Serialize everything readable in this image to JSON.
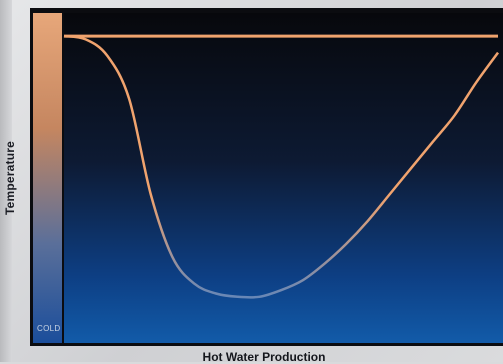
{
  "chart_data": {
    "type": "line",
    "title": "",
    "xlabel": "Hot Water Production",
    "ylabel": "Temperature",
    "y_scale_labels": {
      "bottom": "COLD"
    },
    "xlim": [
      0,
      100
    ],
    "ylim": [
      0,
      100
    ],
    "grid": false,
    "legend": "none",
    "series": [
      {
        "x": [
          0,
          100
        ],
        "y": [
          93,
          93
        ],
        "color": "#f0a36e"
      },
      {
        "x": [
          0,
          5,
          10,
          15,
          20,
          25,
          30,
          35,
          40,
          45,
          50,
          55,
          60,
          65,
          70,
          75,
          80,
          85,
          90,
          95,
          100
        ],
        "y": [
          93,
          92,
          87,
          74,
          45,
          26,
          18,
          15,
          14,
          14,
          16,
          19,
          24,
          30,
          37,
          45,
          53,
          61,
          69,
          79,
          88
        ],
        "color_top": "#f0a36e",
        "color_bottom": "#2b7bd6"
      }
    ],
    "background_gradient": [
      "#07080c",
      "#0d1a33",
      "#0d3f84",
      "#125ba9"
    ],
    "temperature_bar_gradient": [
      "#e7a77a",
      "#c58660",
      "#5a6f9a",
      "#1b4e9b"
    ]
  }
}
